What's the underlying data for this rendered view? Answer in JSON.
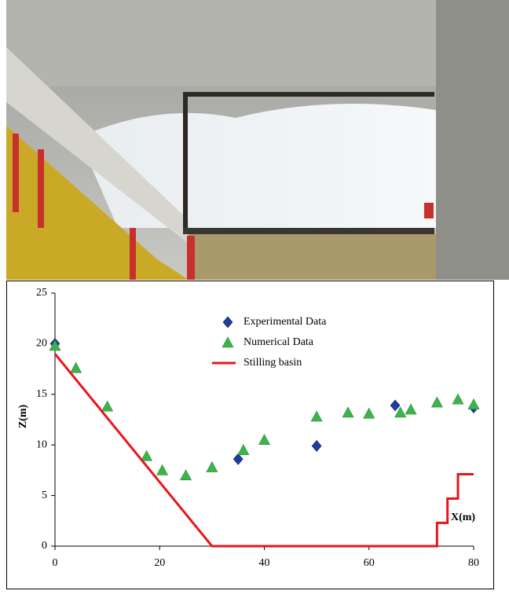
{
  "chart_data": {
    "type": "scatter",
    "xlabel": "X(m)",
    "ylabel": "Z(m)",
    "xlim": [
      0,
      80
    ],
    "ylim": [
      0,
      25
    ],
    "xticks": [
      0,
      20,
      40,
      60,
      80
    ],
    "yticks": [
      0,
      5,
      10,
      15,
      20,
      25
    ],
    "grid": false,
    "legend": "top",
    "series": [
      {
        "name": "Experimental Data",
        "type": "scatter",
        "marker": "diamond",
        "color": "#1f3d99",
        "x": [
          0,
          35,
          50,
          65,
          80
        ],
        "values": [
          20,
          8.6,
          9.9,
          13.9,
          13.7
        ]
      },
      {
        "name": "Numerical Data",
        "type": "scatter",
        "marker": "triangle",
        "color": "#3cb44b",
        "x": [
          0,
          4,
          10,
          17.5,
          20.5,
          25,
          30,
          36,
          40,
          50,
          56,
          60,
          66,
          68,
          73,
          77,
          80
        ],
        "values": [
          19.8,
          17.6,
          13.8,
          8.9,
          7.5,
          7.0,
          7.8,
          9.5,
          10.5,
          12.8,
          13.2,
          13.1,
          13.2,
          13.5,
          14.2,
          14.5,
          14.0
        ]
      },
      {
        "name": "Stilling basin",
        "type": "line",
        "color": "#e8151b",
        "x": [
          0,
          30,
          73,
          73,
          75,
          75,
          77,
          77,
          80
        ],
        "values": [
          19,
          0,
          0,
          2.3,
          2.3,
          4.7,
          4.7,
          7.1,
          7.1
        ]
      }
    ]
  }
}
